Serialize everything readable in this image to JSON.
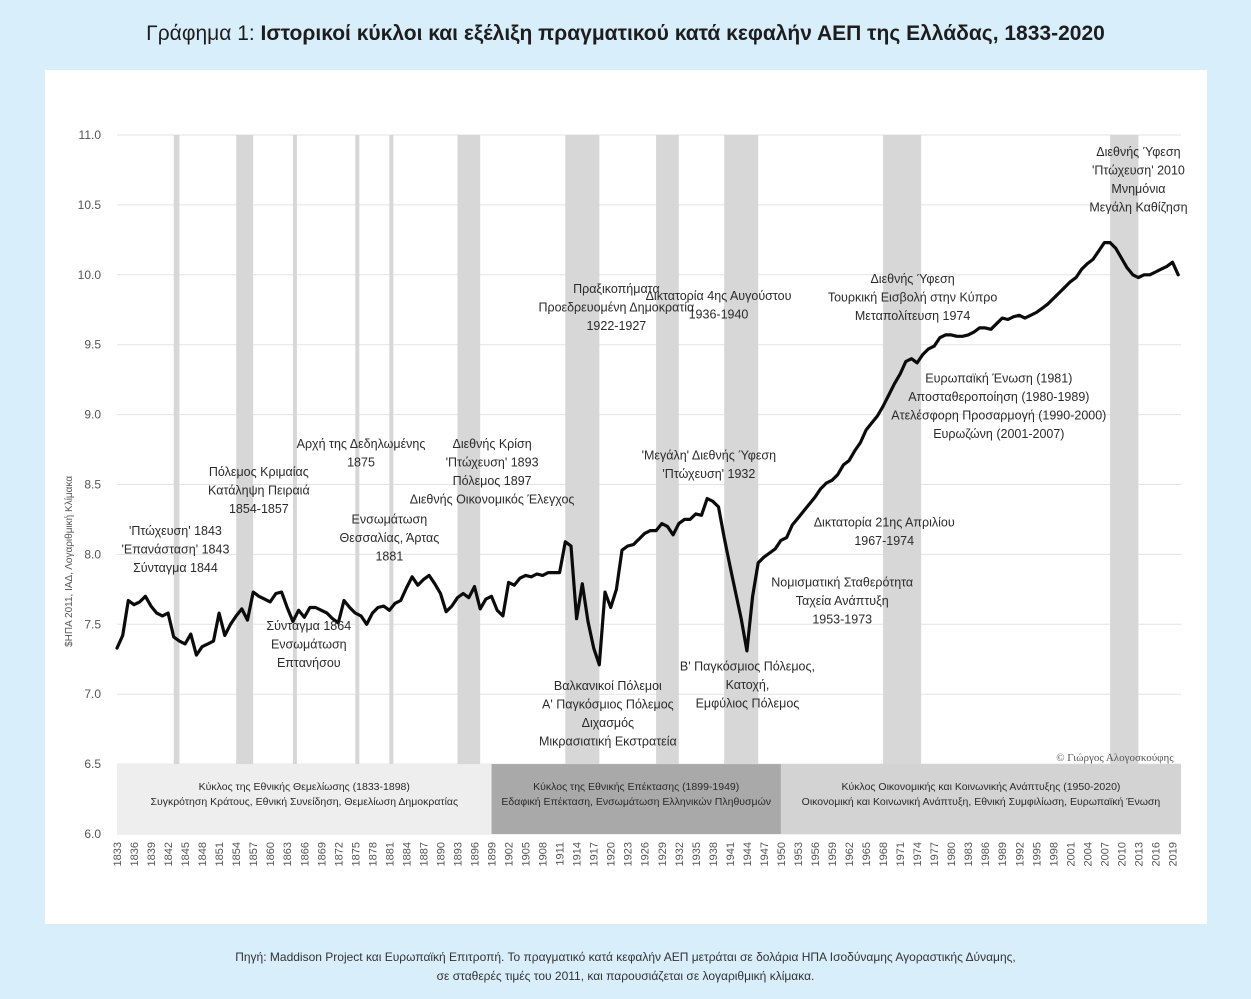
{
  "header": {
    "title_prefix": "Γράφημα 1: ",
    "title_main": "Ιστορικοί κύκλοι και εξέλιξη πραγματικού κατά κεφαλήν ΑΕΠ της Ελλάδας, 1833-2020"
  },
  "footer": {
    "source_line1": "Πηγή: Maddison Project και Ευρωπαϊκή Επιτροπή. Το πραγματικό κατά κεφαλήν ΑΕΠ μετράται σε δολάρια ΗΠΑ Ισοδύναμης Αγοραστικής Δύναμης,",
    "source_line2": "σε σταθερές τιμές του 2011, και παρουσιάζεται σε λογαριθμική κλίμακα."
  },
  "colors": {
    "line": "#0b0b0b",
    "shade": "#d7d7d7",
    "band_1": "#eeeeee",
    "band_2": "#a9a9a9",
    "band_3": "#d3d3d3",
    "grid": "#e3e3e3",
    "text": "#333333"
  },
  "chart_data": {
    "type": "line",
    "title": "",
    "xlabel": "",
    "ylabel": "$ΗΠΑ 2011, ΙΑΔ, Λογαριθμική Κλίμακα",
    "xlim": [
      1833,
      2020
    ],
    "ylim": [
      6.0,
      11.0
    ],
    "y_ticks": [
      "6.0",
      "6.5",
      "7.0",
      "7.5",
      "8.0",
      "8.5",
      "9.0",
      "9.5",
      "10.0",
      "10.5",
      "11.0"
    ],
    "x_ticks": [
      1833,
      1836,
      1839,
      1842,
      1845,
      1848,
      1851,
      1854,
      1857,
      1860,
      1863,
      1866,
      1869,
      1872,
      1875,
      1878,
      1881,
      1884,
      1887,
      1890,
      1893,
      1896,
      1899,
      1902,
      1905,
      1908,
      1911,
      1914,
      1917,
      1920,
      1923,
      1926,
      1929,
      1932,
      1935,
      1938,
      1941,
      1944,
      1947,
      1950,
      1953,
      1956,
      1959,
      1962,
      1965,
      1968,
      1971,
      1974,
      1977,
      1980,
      1983,
      1986,
      1989,
      1992,
      1995,
      1998,
      2001,
      2004,
      2007,
      2010,
      2013,
      2016,
      2019
    ],
    "grid": true,
    "legend": "none",
    "shaded_periods": [
      [
        1843,
        1844
      ],
      [
        1854,
        1857
      ],
      [
        1864,
        1864.6
      ],
      [
        1875,
        1875.5
      ],
      [
        1881,
        1881.5
      ],
      [
        1893,
        1897
      ],
      [
        1912,
        1918
      ],
      [
        1928,
        1932
      ],
      [
        1940,
        1946
      ],
      [
        1974,
        1974.3
      ],
      [
        1968,
        1974.3
      ],
      [
        2008,
        2013
      ]
    ],
    "series": [
      {
        "values": [
          [
            1833,
            7.33
          ],
          [
            1834,
            7.42
          ],
          [
            1835,
            7.67
          ],
          [
            1836,
            7.64
          ],
          [
            1837,
            7.66
          ],
          [
            1838,
            7.7
          ],
          [
            1839,
            7.63
          ],
          [
            1840,
            7.58
          ],
          [
            1841,
            7.56
          ],
          [
            1842,
            7.58
          ],
          [
            1843,
            7.41
          ],
          [
            1844,
            7.38
          ],
          [
            1845,
            7.36
          ],
          [
            1846,
            7.43
          ],
          [
            1847,
            7.28
          ],
          [
            1848,
            7.34
          ],
          [
            1849,
            7.36
          ],
          [
            1850,
            7.38
          ],
          [
            1851,
            7.58
          ],
          [
            1852,
            7.42
          ],
          [
            1853,
            7.5
          ],
          [
            1854,
            7.56
          ],
          [
            1855,
            7.61
          ],
          [
            1856,
            7.53
          ],
          [
            1857,
            7.73
          ],
          [
            1858,
            7.7
          ],
          [
            1859,
            7.68
          ],
          [
            1860,
            7.66
          ],
          [
            1861,
            7.72
          ],
          [
            1862,
            7.73
          ],
          [
            1863,
            7.62
          ],
          [
            1864,
            7.52
          ],
          [
            1865,
            7.6
          ],
          [
            1866,
            7.55
          ],
          [
            1867,
            7.62
          ],
          [
            1868,
            7.62
          ],
          [
            1869,
            7.6
          ],
          [
            1870,
            7.58
          ],
          [
            1871,
            7.54
          ],
          [
            1872,
            7.51
          ],
          [
            1873,
            7.67
          ],
          [
            1874,
            7.62
          ],
          [
            1875,
            7.58
          ],
          [
            1876,
            7.56
          ],
          [
            1877,
            7.5
          ],
          [
            1878,
            7.58
          ],
          [
            1879,
            7.62
          ],
          [
            1880,
            7.63
          ],
          [
            1881,
            7.6
          ],
          [
            1882,
            7.65
          ],
          [
            1883,
            7.67
          ],
          [
            1884,
            7.76
          ],
          [
            1885,
            7.84
          ],
          [
            1886,
            7.78
          ],
          [
            1887,
            7.82
          ],
          [
            1888,
            7.85
          ],
          [
            1889,
            7.79
          ],
          [
            1890,
            7.72
          ],
          [
            1891,
            7.59
          ],
          [
            1892,
            7.63
          ],
          [
            1893,
            7.69
          ],
          [
            1894,
            7.72
          ],
          [
            1895,
            7.69
          ],
          [
            1896,
            7.77
          ],
          [
            1897,
            7.61
          ],
          [
            1898,
            7.68
          ],
          [
            1899,
            7.7
          ],
          [
            1900,
            7.6
          ],
          [
            1901,
            7.56
          ],
          [
            1902,
            7.8
          ],
          [
            1903,
            7.78
          ],
          [
            1904,
            7.83
          ],
          [
            1905,
            7.85
          ],
          [
            1906,
            7.84
          ],
          [
            1907,
            7.86
          ],
          [
            1908,
            7.85
          ],
          [
            1909,
            7.87
          ],
          [
            1910,
            7.87
          ],
          [
            1911,
            7.87
          ],
          [
            1912,
            8.09
          ],
          [
            1913,
            8.06
          ],
          [
            1914,
            7.54
          ],
          [
            1915,
            7.79
          ],
          [
            1916,
            7.52
          ],
          [
            1917,
            7.33
          ],
          [
            1918,
            7.21
          ],
          [
            1919,
            7.73
          ],
          [
            1920,
            7.62
          ],
          [
            1921,
            7.75
          ],
          [
            1922,
            8.03
          ],
          [
            1923,
            8.06
          ],
          [
            1924,
            8.07
          ],
          [
            1925,
            8.11
          ],
          [
            1926,
            8.15
          ],
          [
            1927,
            8.17
          ],
          [
            1928,
            8.17
          ],
          [
            1929,
            8.22
          ],
          [
            1930,
            8.2
          ],
          [
            1931,
            8.14
          ],
          [
            1932,
            8.22
          ],
          [
            1933,
            8.25
          ],
          [
            1934,
            8.25
          ],
          [
            1935,
            8.29
          ],
          [
            1936,
            8.28
          ],
          [
            1937,
            8.4
          ],
          [
            1938,
            8.38
          ],
          [
            1939,
            8.34
          ],
          [
            1940,
            8.12
          ],
          [
            1941,
            7.92
          ],
          [
            1942,
            7.73
          ],
          [
            1943,
            7.54
          ],
          [
            1944,
            7.31
          ],
          [
            1945,
            7.7
          ],
          [
            1946,
            7.94
          ],
          [
            1947,
            7.98
          ],
          [
            1948,
            8.01
          ],
          [
            1949,
            8.04
          ],
          [
            1950,
            8.1
          ],
          [
            1951,
            8.12
          ],
          [
            1952,
            8.21
          ],
          [
            1953,
            8.26
          ],
          [
            1954,
            8.31
          ],
          [
            1955,
            8.36
          ],
          [
            1956,
            8.41
          ],
          [
            1957,
            8.47
          ],
          [
            1958,
            8.51
          ],
          [
            1959,
            8.53
          ],
          [
            1960,
            8.57
          ],
          [
            1961,
            8.64
          ],
          [
            1962,
            8.67
          ],
          [
            1963,
            8.74
          ],
          [
            1964,
            8.8
          ],
          [
            1965,
            8.89
          ],
          [
            1966,
            8.94
          ],
          [
            1967,
            8.99
          ],
          [
            1968,
            9.06
          ],
          [
            1969,
            9.14
          ],
          [
            1970,
            9.22
          ],
          [
            1971,
            9.29
          ],
          [
            1972,
            9.38
          ],
          [
            1973,
            9.4
          ],
          [
            1974,
            9.37
          ],
          [
            1975,
            9.43
          ],
          [
            1976,
            9.47
          ],
          [
            1977,
            9.49
          ],
          [
            1978,
            9.55
          ],
          [
            1979,
            9.57
          ],
          [
            1980,
            9.57
          ],
          [
            1981,
            9.56
          ],
          [
            1982,
            9.56
          ],
          [
            1983,
            9.57
          ],
          [
            1984,
            9.59
          ],
          [
            1985,
            9.62
          ],
          [
            1986,
            9.62
          ],
          [
            1987,
            9.61
          ],
          [
            1988,
            9.65
          ],
          [
            1989,
            9.69
          ],
          [
            1990,
            9.68
          ],
          [
            1991,
            9.7
          ],
          [
            1992,
            9.71
          ],
          [
            1993,
            9.69
          ],
          [
            1994,
            9.71
          ],
          [
            1995,
            9.73
          ],
          [
            1996,
            9.76
          ],
          [
            1997,
            9.79
          ],
          [
            1998,
            9.83
          ],
          [
            1999,
            9.87
          ],
          [
            2000,
            9.91
          ],
          [
            2001,
            9.95
          ],
          [
            2002,
            9.98
          ],
          [
            2003,
            10.04
          ],
          [
            2004,
            10.08
          ],
          [
            2005,
            10.11
          ],
          [
            2006,
            10.17
          ],
          [
            2007,
            10.23
          ],
          [
            2008,
            10.23
          ],
          [
            2009,
            10.19
          ],
          [
            2010,
            10.12
          ],
          [
            2011,
            10.05
          ],
          [
            2012,
            10.0
          ],
          [
            2013,
            9.98
          ],
          [
            2014,
            10.0
          ],
          [
            2015,
            10.0
          ],
          [
            2016,
            10.02
          ],
          [
            2017,
            10.04
          ],
          [
            2018,
            10.06
          ],
          [
            2019,
            10.09
          ],
          [
            2020,
            10.0
          ]
        ]
      }
    ],
    "annotations": [
      {
        "year": 1843.3,
        "y": 8.14,
        "lines": [
          "'Πτώχευση' 1843",
          "'Επανάσταση' 1843",
          "Σύνταγμα 1844"
        ]
      },
      {
        "year": 1858,
        "y": 8.56,
        "lines": [
          "Πόλεμος Κριμαίας",
          "Κατάληψη Πειραιά",
          "1854-1857"
        ]
      },
      {
        "year": 1876,
        "y": 8.76,
        "lines": [
          "Αρχή της Δεδηλωμένης",
          "1875"
        ]
      },
      {
        "year": 1881,
        "y": 8.22,
        "lines": [
          "Ενσωμάτωση",
          "Θεσσαλίας, Άρτας",
          "1881"
        ]
      },
      {
        "year": 1866.8,
        "y": 7.46,
        "lines": [
          "Σύνταγμα 1864",
          "Ενσωμάτωση",
          "Επτανήσου"
        ]
      },
      {
        "year": 1899.1,
        "y": 8.76,
        "lines": [
          "Διεθνής Κρίση",
          "'Πτώχευση' 1893",
          "Πόλεμος 1897",
          "Διεθνής Οικονομικός Έλεγχος"
        ]
      },
      {
        "year": 1921,
        "y": 9.87,
        "lines": [
          "Πραξικοπήματα",
          "Προεδρευομένη Δημοκρατία",
          "1922-1927"
        ]
      },
      {
        "year": 1939,
        "y": 9.82,
        "lines": [
          "Δικτατορία 4ης Αυγούστου",
          "1936-1940"
        ]
      },
      {
        "year": 1937.3,
        "y": 8.68,
        "lines": [
          "'Μεγάλη' Διεθνής Ύφεση",
          "'Πτώχευση' 1932"
        ]
      },
      {
        "year": 1919.5,
        "y": 7.03,
        "lines": [
          "Βαλκανικοί Πόλεμοι",
          "Α' Παγκόσμιος Πόλεμος",
          "Διχασμός",
          "Μικρασιατική Εκστρατεία"
        ]
      },
      {
        "year": 1944.1,
        "y": 7.17,
        "lines": [
          "Β' Παγκόσμιος Πόλεμος,",
          "Κατοχή,",
          "Εμφύλιος Πόλεμος"
        ]
      },
      {
        "year": 1973.2,
        "y": 9.94,
        "lines": [
          "Διεθνής Ύφεση",
          "Τουρκική Εισβολή στην Κύπρο",
          "Μεταπολίτευση 1974"
        ]
      },
      {
        "year": 2013,
        "y": 10.85,
        "lines": [
          "Διεθνής Ύφεση",
          "'Πτώχευση' 2010",
          "Μνημόνια",
          "Μεγάλη Καθίζηση"
        ]
      },
      {
        "year": 1988.4,
        "y": 9.23,
        "lines": [
          "Ευρωπαϊκή Ένωση (1981)",
          "Αποσταθεροποίηση (1980-1989)",
          "Ατελέσφορη Προσαρμογή (1990-2000)",
          "Ευρωζώνη (2001-2007)"
        ]
      },
      {
        "year": 1968.2,
        "y": 8.2,
        "lines": [
          "Δικτατορία 21ης Απριλίου",
          "1967-1974"
        ]
      },
      {
        "year": 1960.8,
        "y": 7.77,
        "lines": [
          "Νομισματική Σταθερότητα",
          "Ταχεία Ανάπτυξη",
          "1953-1973"
        ]
      }
    ],
    "copyright": "© Γιώργος Αλογοσκούφης",
    "bands": [
      {
        "from": 1833,
        "to": 1899,
        "title": "Κύκλος της Εθνικής Θεμελίωσης (1833-1898)",
        "subtitle": "Συγκρότηση Κράτους, Εθνική Συνείδηση, Θεμελίωση Δημοκρατίας"
      },
      {
        "from": 1899,
        "to": 1950,
        "title": "Κύκλος της Εθνικής Επέκτασης (1899-1949)",
        "subtitle": "Εδαφική Επέκταση, Ενσωμάτωση Ελληνικών Πληθυσμών"
      },
      {
        "from": 1950,
        "to": 2020.5,
        "title": "Κύκλος Οικονομικής και Κοινωνικής Ανάπτυξης (1950-2020)",
        "subtitle": "Οικονομική και Κοινωνική Ανάπτυξη, Εθνική Συμφιλίωση, Ευρωπαϊκή Ένωση"
      }
    ]
  }
}
